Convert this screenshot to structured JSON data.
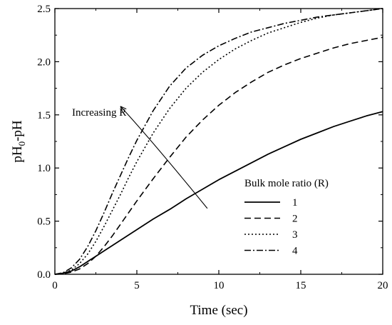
{
  "chart_data": {
    "type": "line",
    "title": "",
    "xlabel": "Time (sec)",
    "ylabel_main": "pH",
    "ylabel_sub": "0",
    "ylabel_tail": "-pH",
    "xlim": [
      0,
      20
    ],
    "ylim": [
      0,
      2.5
    ],
    "xticks": [
      0,
      5,
      10,
      15,
      20
    ],
    "yticks": [
      0.0,
      0.5,
      1.0,
      1.5,
      2.0,
      2.5
    ],
    "xtick_labels": [
      "0",
      "5",
      "10",
      "15",
      "20"
    ],
    "ytick_labels": [
      "0.0",
      "0.5",
      "1.0",
      "1.5",
      "2.0",
      "2.5"
    ],
    "grid": false,
    "legend_title": "Bulk mole ratio (R)",
    "legend_position": "lower-right",
    "annotation": {
      "text": "Increasing R",
      "arrow_from": [
        4.0,
        1.58
      ],
      "arrow_to": [
        9.3,
        0.62
      ]
    },
    "series": [
      {
        "name": "1",
        "dash": "solid",
        "x": [
          0,
          0.5,
          1,
          1.5,
          2,
          2.5,
          3,
          4,
          5,
          6,
          7,
          8,
          9,
          10,
          11,
          12,
          13,
          14,
          15,
          16,
          17,
          18,
          19,
          20
        ],
        "y": [
          0,
          0.01,
          0.03,
          0.07,
          0.12,
          0.17,
          0.22,
          0.32,
          0.42,
          0.52,
          0.61,
          0.71,
          0.8,
          0.89,
          0.97,
          1.05,
          1.13,
          1.2,
          1.27,
          1.33,
          1.39,
          1.44,
          1.49,
          1.53
        ]
      },
      {
        "name": "2",
        "dash": "dashed",
        "x": [
          0,
          0.5,
          1,
          1.5,
          2,
          2.5,
          3,
          3.5,
          4,
          4.5,
          5,
          6,
          7,
          8,
          9,
          10,
          11,
          12,
          13,
          14,
          15,
          16,
          17,
          18,
          19,
          20
        ],
        "y": [
          0,
          0.005,
          0.02,
          0.05,
          0.1,
          0.17,
          0.26,
          0.36,
          0.47,
          0.58,
          0.69,
          0.9,
          1.1,
          1.29,
          1.45,
          1.59,
          1.71,
          1.81,
          1.9,
          1.97,
          2.03,
          2.08,
          2.13,
          2.17,
          2.2,
          2.23
        ]
      },
      {
        "name": "3",
        "dash": "dotted",
        "x": [
          0,
          0.5,
          1,
          1.5,
          2,
          2.5,
          3,
          3.5,
          4,
          4.5,
          5,
          6,
          7,
          8,
          9,
          10,
          11,
          12,
          13,
          14,
          15,
          16,
          17,
          18,
          19,
          20
        ],
        "y": [
          0,
          0.01,
          0.04,
          0.1,
          0.19,
          0.31,
          0.45,
          0.6,
          0.75,
          0.91,
          1.06,
          1.33,
          1.56,
          1.75,
          1.9,
          2.02,
          2.12,
          2.2,
          2.27,
          2.32,
          2.37,
          2.41,
          2.44,
          2.46,
          2.48,
          2.5
        ]
      },
      {
        "name": "4",
        "dash": "dash-dot",
        "x": [
          0,
          0.5,
          1,
          1.5,
          2,
          2.5,
          3,
          3.5,
          4,
          4.5,
          5,
          6,
          7,
          8,
          9,
          10,
          11,
          12,
          13,
          14,
          15,
          16,
          17,
          18,
          19,
          20
        ],
        "y": [
          0,
          0.015,
          0.06,
          0.14,
          0.26,
          0.41,
          0.58,
          0.76,
          0.93,
          1.1,
          1.26,
          1.54,
          1.77,
          1.94,
          2.06,
          2.15,
          2.22,
          2.28,
          2.32,
          2.36,
          2.39,
          2.42,
          2.44,
          2.46,
          2.48,
          2.5
        ]
      }
    ]
  }
}
